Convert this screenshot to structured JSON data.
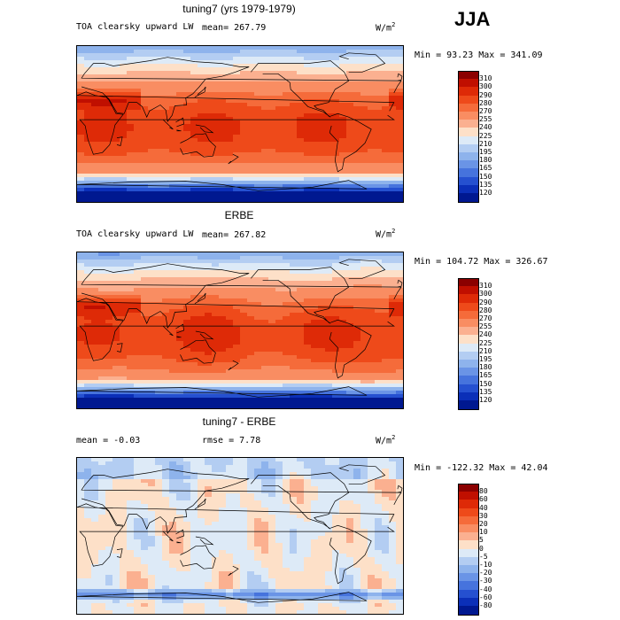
{
  "season": "JJA",
  "panels": [
    {
      "title": "tuning7 (yrs 1979-1979)",
      "field_label": "TOA clearsky upward LW",
      "stat_label": "mean= 267.79",
      "units_base": "W/m",
      "units_exp": "2",
      "minmax": "Min =  93.23 Max = 341.09",
      "field": "model",
      "levels": [
        "310",
        "300",
        "290",
        "280",
        "270",
        "255",
        "240",
        "225",
        "210",
        "195",
        "180",
        "165",
        "150",
        "135",
        "120"
      ],
      "colors": [
        "#8b0000",
        "#c00f00",
        "#de2a07",
        "#ee4a1a",
        "#f56b3a",
        "#f98d62",
        "#fbb090",
        "#fde0c8",
        "#ddeaf7",
        "#b3cdf2",
        "#8eb3ec",
        "#6a94e6",
        "#4673dd",
        "#2550d0",
        "#0b2fb8",
        "#001890"
      ]
    },
    {
      "title": "ERBE",
      "field_label": "TOA clearsky upward LW",
      "stat_label": "mean= 267.82",
      "units_base": "W/m",
      "units_exp": "2",
      "minmax": "Min = 104.72 Max = 326.67",
      "field": "obs",
      "levels": [
        "310",
        "300",
        "290",
        "280",
        "270",
        "255",
        "240",
        "225",
        "210",
        "195",
        "180",
        "165",
        "150",
        "135",
        "120"
      ],
      "colors": [
        "#8b0000",
        "#c00f00",
        "#de2a07",
        "#ee4a1a",
        "#f56b3a",
        "#f98d62",
        "#fbb090",
        "#fde0c8",
        "#ddeaf7",
        "#b3cdf2",
        "#8eb3ec",
        "#6a94e6",
        "#4673dd",
        "#2550d0",
        "#0b2fb8",
        "#001890"
      ]
    },
    {
      "title": "tuning7 - ERBE",
      "field_label": "mean =   -0.03",
      "stat_label": "rmse =   7.78",
      "units_base": "W/m",
      "units_exp": "2",
      "minmax": "Min = -122.32 Max =  42.04",
      "field": "diff",
      "levels": [
        "80",
        "60",
        "40",
        "30",
        "20",
        "10",
        "5",
        "0",
        "-5",
        "-10",
        "-20",
        "-30",
        "-40",
        "-60",
        "-80"
      ],
      "colors": [
        "#8b0000",
        "#c00f00",
        "#de2a07",
        "#ee4a1a",
        "#f56b3a",
        "#f98d62",
        "#fbb090",
        "#fde0c8",
        "#ddeaf7",
        "#b3cdf2",
        "#8eb3ec",
        "#6a94e6",
        "#4673dd",
        "#2550d0",
        "#0b2fb8",
        "#001890"
      ]
    }
  ]
}
